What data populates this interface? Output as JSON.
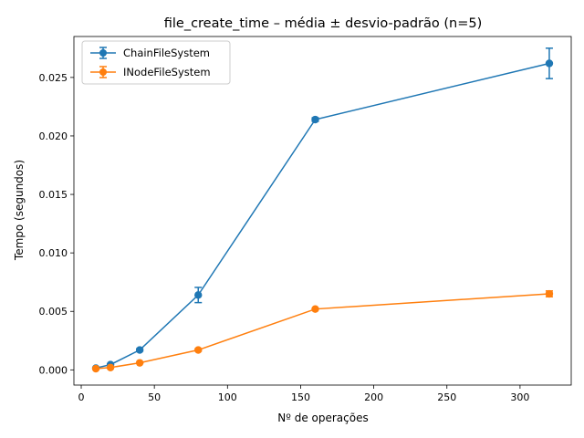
{
  "chart_data": {
    "type": "line",
    "title": "file_create_time – média ± desvio-padrão (n=5)",
    "xlabel": "Nº de operações",
    "ylabel": "Tempo (segundos)",
    "xlim": [
      -5,
      335
    ],
    "ylim": [
      -0.0013,
      0.0285
    ],
    "xticks": [
      0,
      50,
      100,
      150,
      200,
      250,
      300
    ],
    "xtick_labels": [
      "0",
      "50",
      "100",
      "150",
      "200",
      "250",
      "300"
    ],
    "yticks": [
      0.0,
      0.005,
      0.01,
      0.015,
      0.02,
      0.025
    ],
    "ytick_labels": [
      "0.000",
      "0.005",
      "0.010",
      "0.015",
      "0.020",
      "0.025"
    ],
    "grid": false,
    "legend_position": "upper-left",
    "series": [
      {
        "name": "ChainFileSystem",
        "color": "#1f77b4",
        "x": [
          10,
          20,
          40,
          80,
          160,
          320
        ],
        "y": [
          0.00015,
          0.00045,
          0.0017,
          0.0064,
          0.0214,
          0.0262
        ],
        "err": [
          3e-05,
          5e-05,
          0.0001,
          0.00065,
          0.00015,
          0.0013
        ]
      },
      {
        "name": "INodeFileSystem",
        "color": "#ff7f0e",
        "x": [
          10,
          20,
          40,
          80,
          160,
          320
        ],
        "y": [
          0.0001,
          0.0002,
          0.0006,
          0.0017,
          0.0052,
          0.0065
        ],
        "err": [
          2e-05,
          3e-05,
          5e-05,
          0.0001,
          8e-05,
          0.00025
        ]
      }
    ]
  }
}
